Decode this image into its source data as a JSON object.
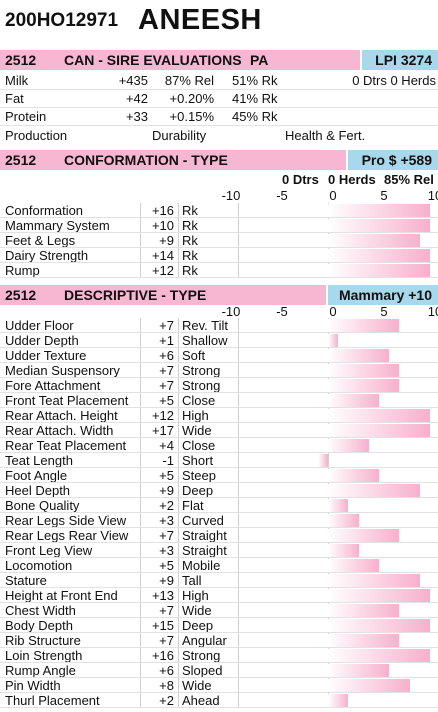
{
  "header": {
    "id": "200HO12971",
    "name": "ANEESH"
  },
  "sire": {
    "code": "2512",
    "title": "CAN - SIRE EVALUATIONS",
    "pa": "PA",
    "lpi": "LPI 3274",
    "rows": [
      {
        "trait": "Milk",
        "value": "+435",
        "rel": "87% Rel",
        "rk": "51% Rk",
        "extra": "0 Dtrs   0 Herds"
      },
      {
        "trait": "Fat",
        "value": "+42",
        "rel": "+0.20%",
        "rk": "41% Rk",
        "extra": ""
      },
      {
        "trait": "Protein",
        "value": "+33",
        "rel": "+0.15%",
        "rk": "45% Rk",
        "extra": ""
      }
    ],
    "footer": {
      "production": "Production",
      "durability": "Durability",
      "health": "Health & Fert."
    }
  },
  "conformation": {
    "code": "2512",
    "title": "CONFORMATION - TYPE",
    "badge": "Pro $ +589",
    "stats": {
      "dtrs": "0 Dtrs",
      "herds": "0 Herds",
      "rel": "85% Rel"
    },
    "ticks": [
      "-10",
      "-5",
      "0",
      "5",
      "10"
    ],
    "rows": [
      {
        "trait": "Conformation",
        "value": "+16",
        "desc": "Rk"
      },
      {
        "trait": "Mammary System",
        "value": "+10",
        "desc": "Rk"
      },
      {
        "trait": "Feet & Legs",
        "value": "+9",
        "desc": "Rk"
      },
      {
        "trait": "Dairy Strength",
        "value": "+14",
        "desc": "Rk"
      },
      {
        "trait": "Rump",
        "value": "+12",
        "desc": "Rk"
      }
    ]
  },
  "descriptive": {
    "code": "2512",
    "title": "DESCRIPTIVE - TYPE",
    "badge": "Mammary +10",
    "ticks": [
      "-10",
      "-5",
      "0",
      "5",
      "10"
    ],
    "rows": [
      {
        "trait": "Udder Floor",
        "value": "+7",
        "desc": "Rev. Tilt"
      },
      {
        "trait": "Udder Depth",
        "value": "+1",
        "desc": "Shallow"
      },
      {
        "trait": "Udder Texture",
        "value": "+6",
        "desc": "Soft"
      },
      {
        "trait": "Median Suspensory",
        "value": "+7",
        "desc": "Strong"
      },
      {
        "trait": "Fore Attachment",
        "value": "+7",
        "desc": "Strong"
      },
      {
        "trait": "Front Teat Placement",
        "value": "+5",
        "desc": "Close"
      },
      {
        "trait": "Rear Attach. Height",
        "value": "+12",
        "desc": "High"
      },
      {
        "trait": "Rear Attach. Width",
        "value": "+17",
        "desc": "Wide"
      },
      {
        "trait": "Rear Teat Placement",
        "value": "+4",
        "desc": "Close"
      },
      {
        "trait": "Teat Length",
        "value": "-1",
        "desc": "Short"
      },
      {
        "trait": "Foot Angle",
        "value": "+5",
        "desc": "Steep"
      },
      {
        "trait": "Heel Depth",
        "value": "+9",
        "desc": "Deep"
      },
      {
        "trait": "Bone Quality",
        "value": "+2",
        "desc": "Flat"
      },
      {
        "trait": "Rear Legs Side View",
        "value": "+3",
        "desc": "Curved"
      },
      {
        "trait": "Rear Legs Rear View",
        "value": "+7",
        "desc": "Straight"
      },
      {
        "trait": "Front Leg View",
        "value": "+3",
        "desc": "Straight"
      },
      {
        "trait": "Locomotion",
        "value": "+5",
        "desc": "Mobile"
      },
      {
        "trait": "Stature",
        "value": "+9",
        "desc": "Tall"
      },
      {
        "trait": "Height at Front End",
        "value": "+13",
        "desc": "High"
      },
      {
        "trait": "Chest Width",
        "value": "+7",
        "desc": "Wide"
      },
      {
        "trait": "Body Depth",
        "value": "+15",
        "desc": "Deep"
      },
      {
        "trait": "Rib Structure",
        "value": "+7",
        "desc": "Angular"
      },
      {
        "trait": "Loin Strength",
        "value": "+16",
        "desc": "Strong"
      },
      {
        "trait": "Rump Angle",
        "value": "+6",
        "desc": "Sloped"
      },
      {
        "trait": "Pin Width",
        "value": "+8",
        "desc": "Wide"
      },
      {
        "trait": "Thurl Placement",
        "value": "+2",
        "desc": "Ahead"
      }
    ]
  }
}
